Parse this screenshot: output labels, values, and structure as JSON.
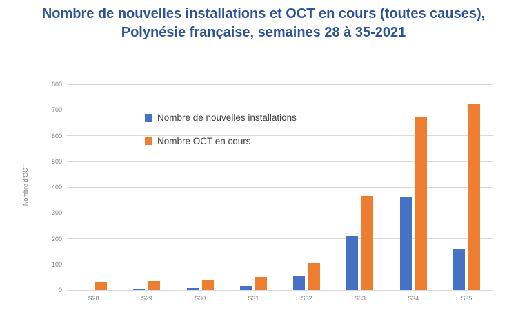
{
  "title": {
    "line1": "Nombre de nouvelles installations et OCT en cours (toutes causes),",
    "line2": "Polynésie française, semaines 28 à 35-2021",
    "color": "#2F5496"
  },
  "chart_data": {
    "type": "bar",
    "categories": [
      "S28",
      "S29",
      "S30",
      "S31",
      "S32",
      "S33",
      "S34",
      "S35"
    ],
    "series": [
      {
        "name": "Nombre de nouvelles installations",
        "color": "#4472C4",
        "values": [
          0,
          5,
          8,
          15,
          55,
          210,
          360,
          160
        ]
      },
      {
        "name": "Nombre OCT en cours",
        "color": "#ED7D31",
        "values": [
          30,
          35,
          40,
          50,
          105,
          365,
          670,
          725
        ]
      }
    ],
    "xlabel": "",
    "ylabel": "Nombre d'OCT",
    "ylim": [
      0,
      800
    ],
    "yticks": [
      0,
      100,
      200,
      300,
      400,
      500,
      600,
      700,
      800
    ],
    "grid": true,
    "legend_position": "inside-top-left",
    "gridline_color": "#D9D9D9",
    "tick_label_color": "#7C7C7C"
  }
}
